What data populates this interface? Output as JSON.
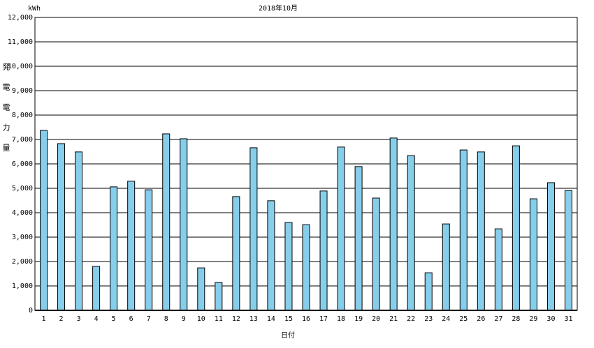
{
  "chart_data": {
    "type": "bar",
    "title": "2018年10月",
    "unit": "kWh",
    "y_label": "発電電力量",
    "x_label": "日付",
    "categories": [
      "1",
      "2",
      "3",
      "4",
      "5",
      "6",
      "7",
      "8",
      "9",
      "10",
      "11",
      "12",
      "13",
      "14",
      "15",
      "16",
      "17",
      "18",
      "19",
      "20",
      "21",
      "22",
      "23",
      "24",
      "25",
      "26",
      "27",
      "28",
      "29",
      "30",
      "31"
    ],
    "values": [
      7370,
      6830,
      6490,
      1800,
      5060,
      5290,
      4940,
      7230,
      7030,
      1740,
      1140,
      4660,
      6660,
      4490,
      3600,
      3510,
      4890,
      6690,
      5890,
      4600,
      7060,
      6340,
      1540,
      3540,
      6570,
      6490,
      3340,
      6740,
      4570,
      5230,
      4910
    ],
    "color": "#87ceeb",
    "ylim": [
      0,
      12000
    ],
    "yticks": [
      0,
      {
        "value": 1000,
        "label": "1,000"
      },
      {
        "value": 2000,
        "label": "2,000"
      },
      {
        "value": 3000,
        "label": "3,000"
      },
      {
        "value": 4000,
        "label": "4,000"
      },
      {
        "value": 5000,
        "label": "5,000"
      },
      {
        "value": 6000,
        "label": "6,000"
      },
      {
        "value": 7000,
        "label": "7,000"
      },
      {
        "value": 8000,
        "label": "8,000"
      },
      {
        "value": 9000,
        "label": "9,000"
      },
      {
        "value": 10000,
        "label": "10,000"
      },
      {
        "value": 11000,
        "label": "11,000"
      },
      {
        "value": 12000,
        "label": "12,000"
      }
    ],
    "grid": true
  }
}
